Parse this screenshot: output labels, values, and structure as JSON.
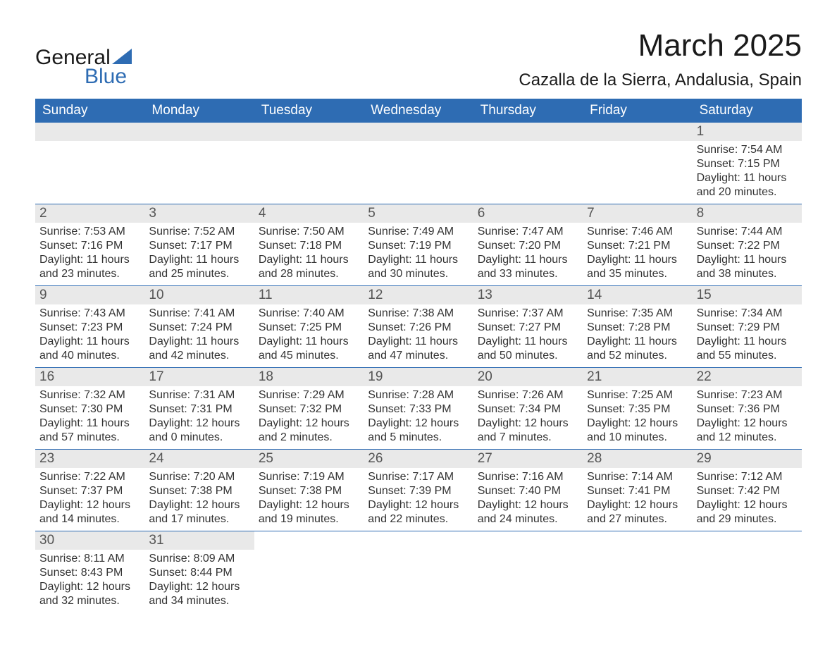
{
  "logo": {
    "line1": "General",
    "line2": "Blue"
  },
  "title": "March 2025",
  "location": "Cazalla de la Sierra, Andalusia, Spain",
  "colors": {
    "header_bg": "#2e6cb3",
    "header_text": "#ffffff",
    "daynum_bg": "#e9e9e9",
    "row_border": "#2e6cb3",
    "body_text": "#333333",
    "page_bg": "#ffffff"
  },
  "layout": {
    "columns": 7,
    "rows": 6,
    "start_weekday": 0,
    "first_day_column": 6
  },
  "typography": {
    "title_fontsize": 44,
    "location_fontsize": 24,
    "weekday_fontsize": 19,
    "daynum_fontsize": 19,
    "body_fontsize": 16
  },
  "weekdays": [
    "Sunday",
    "Monday",
    "Tuesday",
    "Wednesday",
    "Thursday",
    "Friday",
    "Saturday"
  ],
  "days": [
    {
      "n": 1,
      "sunrise": "7:54 AM",
      "sunset": "7:15 PM",
      "daylight_h": 11,
      "daylight_m": 20
    },
    {
      "n": 2,
      "sunrise": "7:53 AM",
      "sunset": "7:16 PM",
      "daylight_h": 11,
      "daylight_m": 23
    },
    {
      "n": 3,
      "sunrise": "7:52 AM",
      "sunset": "7:17 PM",
      "daylight_h": 11,
      "daylight_m": 25
    },
    {
      "n": 4,
      "sunrise": "7:50 AM",
      "sunset": "7:18 PM",
      "daylight_h": 11,
      "daylight_m": 28
    },
    {
      "n": 5,
      "sunrise": "7:49 AM",
      "sunset": "7:19 PM",
      "daylight_h": 11,
      "daylight_m": 30
    },
    {
      "n": 6,
      "sunrise": "7:47 AM",
      "sunset": "7:20 PM",
      "daylight_h": 11,
      "daylight_m": 33
    },
    {
      "n": 7,
      "sunrise": "7:46 AM",
      "sunset": "7:21 PM",
      "daylight_h": 11,
      "daylight_m": 35
    },
    {
      "n": 8,
      "sunrise": "7:44 AM",
      "sunset": "7:22 PM",
      "daylight_h": 11,
      "daylight_m": 38
    },
    {
      "n": 9,
      "sunrise": "7:43 AM",
      "sunset": "7:23 PM",
      "daylight_h": 11,
      "daylight_m": 40
    },
    {
      "n": 10,
      "sunrise": "7:41 AM",
      "sunset": "7:24 PM",
      "daylight_h": 11,
      "daylight_m": 42
    },
    {
      "n": 11,
      "sunrise": "7:40 AM",
      "sunset": "7:25 PM",
      "daylight_h": 11,
      "daylight_m": 45
    },
    {
      "n": 12,
      "sunrise": "7:38 AM",
      "sunset": "7:26 PM",
      "daylight_h": 11,
      "daylight_m": 47
    },
    {
      "n": 13,
      "sunrise": "7:37 AM",
      "sunset": "7:27 PM",
      "daylight_h": 11,
      "daylight_m": 50
    },
    {
      "n": 14,
      "sunrise": "7:35 AM",
      "sunset": "7:28 PM",
      "daylight_h": 11,
      "daylight_m": 52
    },
    {
      "n": 15,
      "sunrise": "7:34 AM",
      "sunset": "7:29 PM",
      "daylight_h": 11,
      "daylight_m": 55
    },
    {
      "n": 16,
      "sunrise": "7:32 AM",
      "sunset": "7:30 PM",
      "daylight_h": 11,
      "daylight_m": 57
    },
    {
      "n": 17,
      "sunrise": "7:31 AM",
      "sunset": "7:31 PM",
      "daylight_h": 12,
      "daylight_m": 0
    },
    {
      "n": 18,
      "sunrise": "7:29 AM",
      "sunset": "7:32 PM",
      "daylight_h": 12,
      "daylight_m": 2
    },
    {
      "n": 19,
      "sunrise": "7:28 AM",
      "sunset": "7:33 PM",
      "daylight_h": 12,
      "daylight_m": 5
    },
    {
      "n": 20,
      "sunrise": "7:26 AM",
      "sunset": "7:34 PM",
      "daylight_h": 12,
      "daylight_m": 7
    },
    {
      "n": 21,
      "sunrise": "7:25 AM",
      "sunset": "7:35 PM",
      "daylight_h": 12,
      "daylight_m": 10
    },
    {
      "n": 22,
      "sunrise": "7:23 AM",
      "sunset": "7:36 PM",
      "daylight_h": 12,
      "daylight_m": 12
    },
    {
      "n": 23,
      "sunrise": "7:22 AM",
      "sunset": "7:37 PM",
      "daylight_h": 12,
      "daylight_m": 14
    },
    {
      "n": 24,
      "sunrise": "7:20 AM",
      "sunset": "7:38 PM",
      "daylight_h": 12,
      "daylight_m": 17
    },
    {
      "n": 25,
      "sunrise": "7:19 AM",
      "sunset": "7:38 PM",
      "daylight_h": 12,
      "daylight_m": 19
    },
    {
      "n": 26,
      "sunrise": "7:17 AM",
      "sunset": "7:39 PM",
      "daylight_h": 12,
      "daylight_m": 22
    },
    {
      "n": 27,
      "sunrise": "7:16 AM",
      "sunset": "7:40 PM",
      "daylight_h": 12,
      "daylight_m": 24
    },
    {
      "n": 28,
      "sunrise": "7:14 AM",
      "sunset": "7:41 PM",
      "daylight_h": 12,
      "daylight_m": 27
    },
    {
      "n": 29,
      "sunrise": "7:12 AM",
      "sunset": "7:42 PM",
      "daylight_h": 12,
      "daylight_m": 29
    },
    {
      "n": 30,
      "sunrise": "8:11 AM",
      "sunset": "8:43 PM",
      "daylight_h": 12,
      "daylight_m": 32
    },
    {
      "n": 31,
      "sunrise": "8:09 AM",
      "sunset": "8:44 PM",
      "daylight_h": 12,
      "daylight_m": 34
    }
  ],
  "labels": {
    "sunrise_prefix": "Sunrise: ",
    "sunset_prefix": "Sunset: ",
    "daylight_prefix": "Daylight: ",
    "hours_word": " hours",
    "and_word": "and ",
    "minutes_suffix": " minutes."
  }
}
